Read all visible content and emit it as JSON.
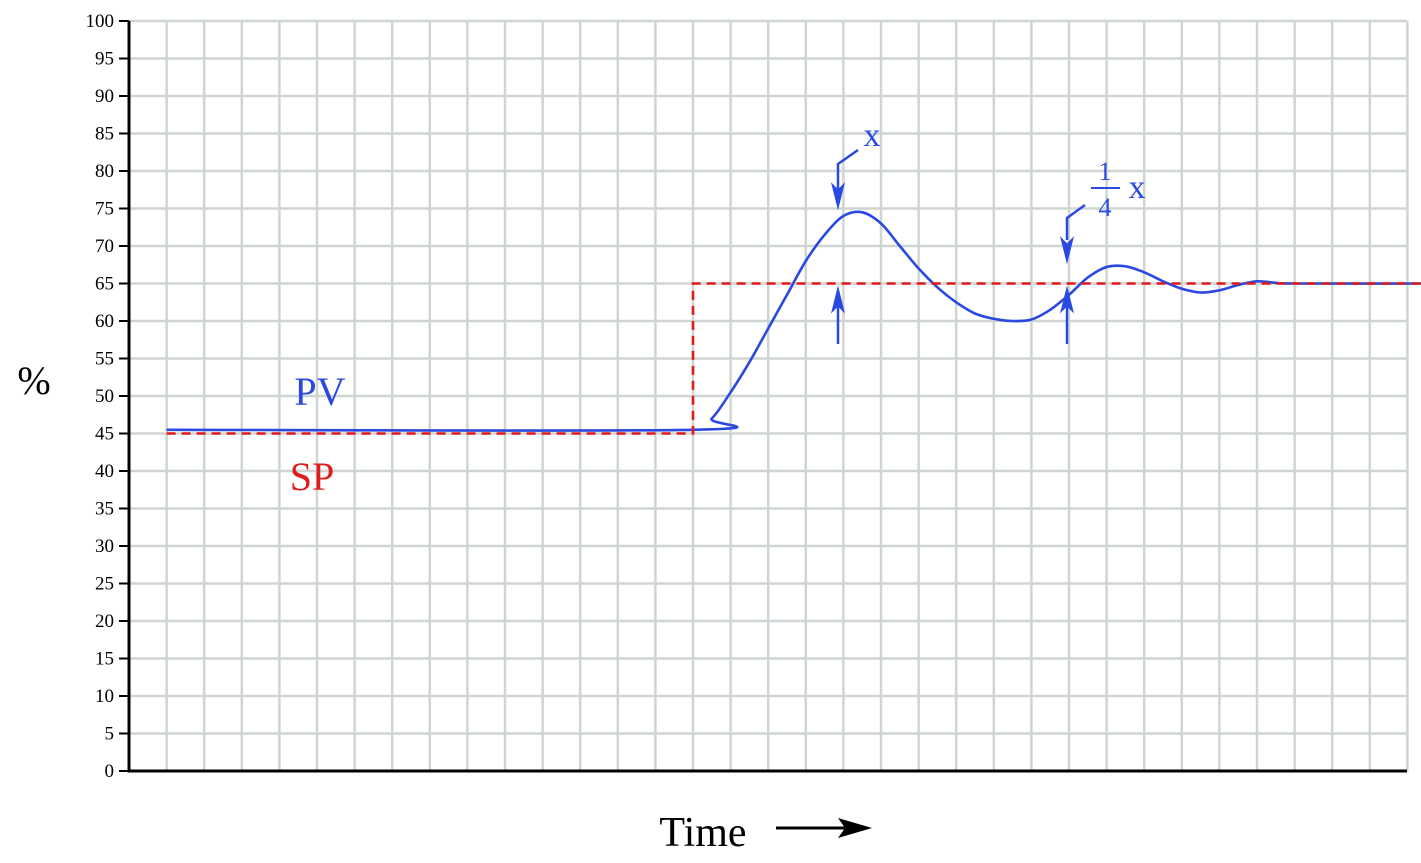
{
  "chart_data": {
    "type": "line",
    "ylabel": "%",
    "xlabel": "Time",
    "ylim": [
      0,
      100
    ],
    "xlim": [
      0,
      34
    ],
    "y_ticks": [
      "0",
      "5",
      "10",
      "15",
      "20",
      "25",
      "30",
      "35",
      "40",
      "45",
      "50",
      "55",
      "60",
      "65",
      "70",
      "75",
      "80",
      "85",
      "90",
      "95",
      "100"
    ],
    "grid": true,
    "series": [
      {
        "name": "PV",
        "color": "#2a49e0",
        "style": "solid",
        "points": [
          [
            1,
            45.5
          ],
          [
            15,
            45.5
          ],
          [
            15.5,
            47
          ],
          [
            16,
            50.5
          ],
          [
            16.5,
            54.5
          ],
          [
            17,
            59
          ],
          [
            17.5,
            63.5
          ],
          [
            18,
            68
          ],
          [
            18.5,
            71.5
          ],
          [
            19,
            74
          ],
          [
            19.5,
            74.5
          ],
          [
            20,
            73
          ],
          [
            20.5,
            70
          ],
          [
            21,
            67
          ],
          [
            21.5,
            64.5
          ],
          [
            22,
            62.5
          ],
          [
            22.5,
            61
          ],
          [
            23,
            60.3
          ],
          [
            23.5,
            60
          ],
          [
            24,
            60.2
          ],
          [
            24.5,
            61.5
          ],
          [
            25,
            63.5
          ],
          [
            25.5,
            65.8
          ],
          [
            26,
            67.2
          ],
          [
            26.5,
            67.3
          ],
          [
            27,
            66.5
          ],
          [
            27.5,
            65.3
          ],
          [
            28,
            64.3
          ],
          [
            28.5,
            63.8
          ],
          [
            29,
            64.1
          ],
          [
            29.5,
            64.8
          ],
          [
            30,
            65.3
          ],
          [
            30.5,
            65.1
          ],
          [
            31,
            65
          ],
          [
            34.5,
            65
          ]
        ]
      },
      {
        "name": "SP",
        "color": "#e01b1b",
        "style": "dashed",
        "points": [
          [
            1,
            45
          ],
          [
            15,
            45
          ],
          [
            15,
            65
          ],
          [
            34.5,
            65
          ]
        ]
      }
    ],
    "annotations": {
      "peak1_label": "x",
      "peak2_numerator": "1",
      "peak2_denominator": "4",
      "peak2_label": "x"
    }
  }
}
